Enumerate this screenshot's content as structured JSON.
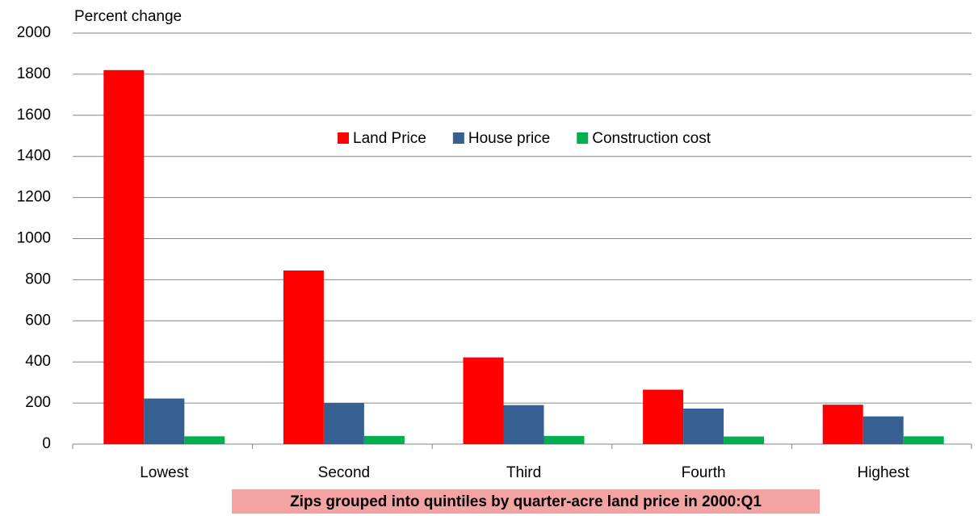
{
  "chart_data": {
    "type": "bar",
    "y_label": "Percent change",
    "x_label": "Zips grouped into quintiles by quarter-acre land price in 2000:Q1",
    "categories": [
      "Lowest",
      "Second",
      "Third",
      "Fourth",
      "Highest"
    ],
    "series": [
      {
        "name": "Land Price",
        "color": "#ff0000",
        "values": [
          1820,
          845,
          422,
          265,
          192
        ]
      },
      {
        "name": "House price",
        "color": "#376092",
        "values": [
          222,
          200,
          190,
          173,
          135
        ]
      },
      {
        "name": "Construction cost",
        "color": "#00b050",
        "values": [
          38,
          40,
          40,
          37,
          38
        ]
      }
    ],
    "ylim": [
      0,
      2000
    ],
    "yticks": [
      0,
      200,
      400,
      600,
      800,
      1000,
      1200,
      1400,
      1600,
      1800,
      2000
    ],
    "grid": true
  }
}
